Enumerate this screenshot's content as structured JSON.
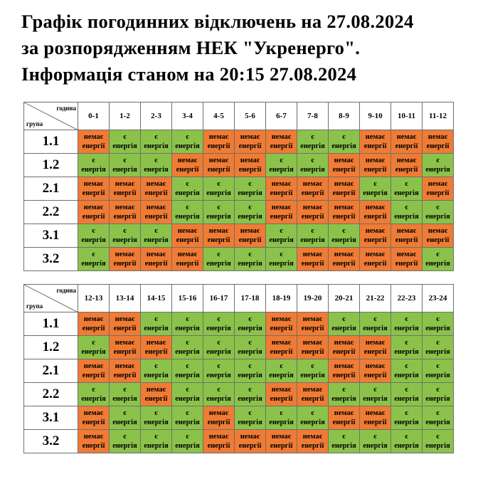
{
  "title": {
    "line1": "Графік погодинних відключень на 27.08.2024",
    "line2": "за розпорядженням НЕК \"Укренерго\".",
    "line3": "Інформація станом на 20:15 27.08.2024"
  },
  "header": {
    "hour_label": "година",
    "group_label": "група"
  },
  "labels": {
    "on": [
      "є",
      "енергія"
    ],
    "off": [
      "немає",
      "енергії"
    ]
  },
  "colors": {
    "on": "#8bc34a",
    "off": "#f07b34",
    "border": "#6f6f6f"
  },
  "tables": [
    {
      "hours": [
        "0-1",
        "1-2",
        "2-3",
        "3-4",
        "4-5",
        "5-6",
        "6-7",
        "7-8",
        "8-9",
        "9-10",
        "10-11",
        "11-12"
      ],
      "rows": [
        {
          "group": "1.1",
          "status": [
            0,
            1,
            1,
            1,
            0,
            0,
            0,
            1,
            1,
            0,
            0,
            0
          ]
        },
        {
          "group": "1.2",
          "status": [
            1,
            1,
            1,
            0,
            0,
            0,
            1,
            1,
            0,
            0,
            0,
            1
          ]
        },
        {
          "group": "2.1",
          "status": [
            0,
            0,
            0,
            1,
            1,
            1,
            0,
            0,
            0,
            1,
            1,
            0
          ]
        },
        {
          "group": "2.2",
          "status": [
            0,
            0,
            0,
            1,
            1,
            1,
            0,
            0,
            0,
            0,
            1,
            1
          ]
        },
        {
          "group": "3.1",
          "status": [
            1,
            1,
            1,
            0,
            0,
            0,
            1,
            1,
            1,
            0,
            0,
            0
          ]
        },
        {
          "group": "3.2",
          "status": [
            1,
            0,
            0,
            0,
            1,
            1,
            1,
            0,
            0,
            0,
            0,
            1
          ]
        }
      ]
    },
    {
      "hours": [
        "12-13",
        "13-14",
        "14-15",
        "15-16",
        "16-17",
        "17-18",
        "18-19",
        "19-20",
        "20-21",
        "21-22",
        "22-23",
        "23-24"
      ],
      "rows": [
        {
          "group": "1.1",
          "status": [
            0,
            0,
            1,
            1,
            1,
            1,
            0,
            0,
            1,
            1,
            1,
            1
          ]
        },
        {
          "group": "1.2",
          "status": [
            1,
            0,
            0,
            1,
            1,
            1,
            0,
            0,
            0,
            0,
            1,
            1
          ]
        },
        {
          "group": "2.1",
          "status": [
            0,
            0,
            1,
            1,
            1,
            1,
            1,
            1,
            0,
            0,
            1,
            1
          ]
        },
        {
          "group": "2.2",
          "status": [
            1,
            1,
            0,
            1,
            1,
            1,
            0,
            0,
            1,
            1,
            1,
            1
          ]
        },
        {
          "group": "3.1",
          "status": [
            0,
            1,
            1,
            1,
            0,
            1,
            1,
            1,
            0,
            0,
            1,
            1
          ]
        },
        {
          "group": "3.2",
          "status": [
            0,
            1,
            1,
            1,
            0,
            0,
            0,
            0,
            1,
            1,
            1,
            1
          ]
        }
      ]
    }
  ]
}
